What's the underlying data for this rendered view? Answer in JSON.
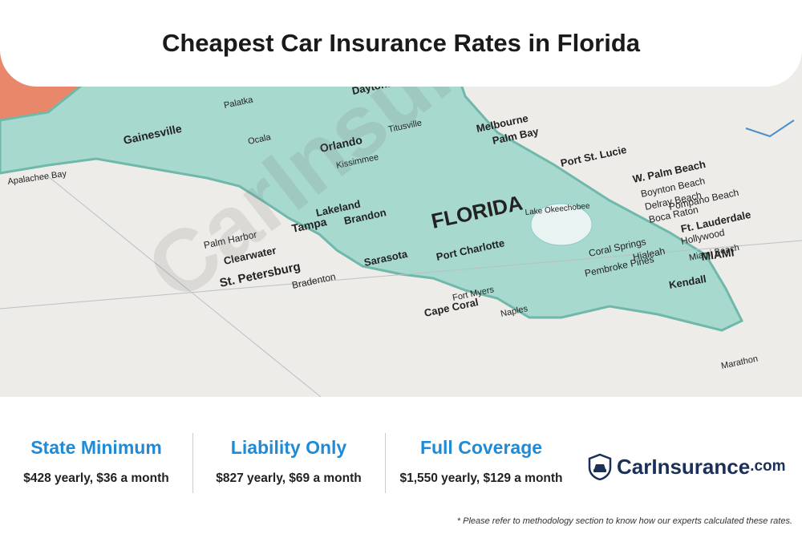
{
  "header": {
    "title": "Cheapest Car Insurance Rates in Florida"
  },
  "map": {
    "labels": [
      "FLORIDA",
      "Gainesville",
      "Orlando",
      "Daytona",
      "Melbourne",
      "Palm Bay",
      "Port St. Lucie",
      "W. Palm Beach",
      "Boynton Beach",
      "Delray Beach",
      "Boca Raton",
      "Pompano Beach",
      "Ft. Lauderdale",
      "Hollywood",
      "Miami Beach",
      "MIAMI",
      "Kendall",
      "Hialeah",
      "Coral Springs",
      "Pembroke Pines",
      "Tampa",
      "Lakeland",
      "Brandon",
      "Clearwater",
      "St. Petersburg",
      "Palm Harbor",
      "Sarasota",
      "Port Charlotte",
      "Cape Coral",
      "Fort Myers",
      "Naples",
      "Ocala",
      "Palatka",
      "Titusville",
      "Kissimmee",
      "Apalachee Bay",
      "Lake Okeechobee",
      "Bradenton",
      "Marathon"
    ]
  },
  "watermark": "CarInsurance.com",
  "rates": [
    {
      "coverage": "State Minimum",
      "price": "$428 yearly, $36 a month"
    },
    {
      "coverage": "Liability Only",
      "price": "$827 yearly, $69 a month"
    },
    {
      "coverage": "Full Coverage",
      "price": "$1,550 yearly, $129 a month"
    }
  ],
  "logo": {
    "name": "CarInsurance",
    "suffix": ".com"
  },
  "footnote": "* Please refer to methodology section to know how our experts calculated these rates."
}
